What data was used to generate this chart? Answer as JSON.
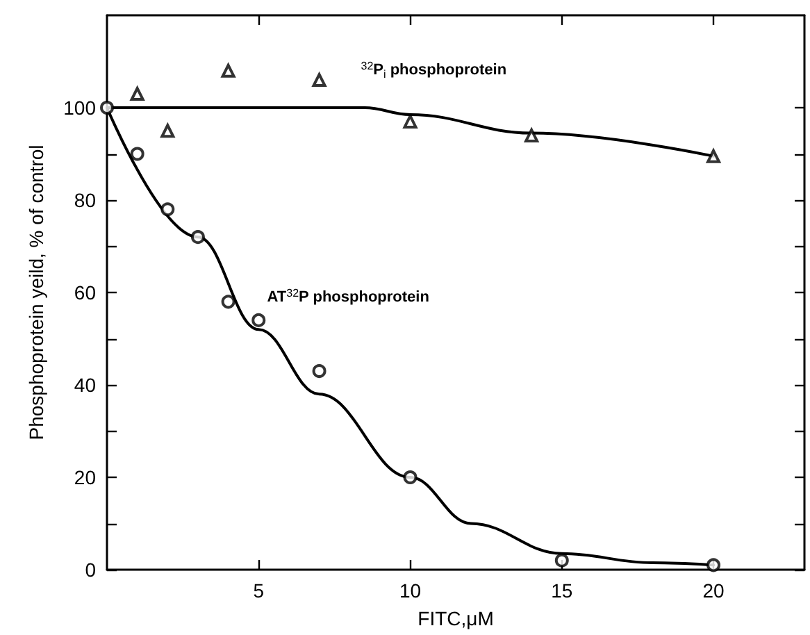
{
  "chart_data": {
    "type": "scatter",
    "xlabel": "FITC,μM",
    "ylabel": "Phosphoprotein yeild, % of control",
    "xlim": [
      0,
      23
    ],
    "xticks": [
      5,
      10,
      15,
      20
    ],
    "ylim": [
      0,
      120
    ],
    "yticks": [
      0,
      {
        "value": 10,
        "label": null
      },
      20,
      {
        "value": 30,
        "label": null
      },
      40,
      {
        "value": 50,
        "label": null
      },
      60,
      {
        "value": 70,
        "label": null
      },
      80,
      {
        "value": 90,
        "label": null
      },
      100
    ],
    "grid": false,
    "legend": false,
    "series": [
      {
        "name": "$^{32}$P$_{i}$ phosphoprotein",
        "marker": "triangle",
        "color": "#000000",
        "x": [
          1,
          2,
          4,
          7,
          10,
          14,
          20
        ],
        "values": [
          103,
          95,
          108,
          106,
          97,
          94,
          89.5
        ]
      },
      {
        "name": "AT$^{32}$P phosphoprotein",
        "marker": "circle",
        "color": "#000000",
        "x": [
          0,
          1,
          2,
          3,
          4,
          5,
          7,
          10,
          15,
          20
        ],
        "values": [
          100,
          90,
          78,
          72,
          58,
          54,
          43,
          20,
          2,
          1
        ]
      },
      {
        "type": "line",
        "marker": "none",
        "line_style": "solid",
        "color": "#000000",
        "x": [
          0,
          8.5,
          10,
          14,
          20
        ],
        "values": [
          100,
          100,
          98.5,
          94.5,
          89.5
        ]
      },
      {
        "type": "line",
        "marker": "none",
        "line_style": "solid",
        "color": "#000000",
        "x": [
          0,
          3,
          5,
          7,
          10,
          12,
          15,
          18,
          20
        ],
        "values": [
          100,
          72,
          52,
          38,
          20,
          10,
          3.5,
          1.5,
          1
        ]
      }
    ]
  }
}
